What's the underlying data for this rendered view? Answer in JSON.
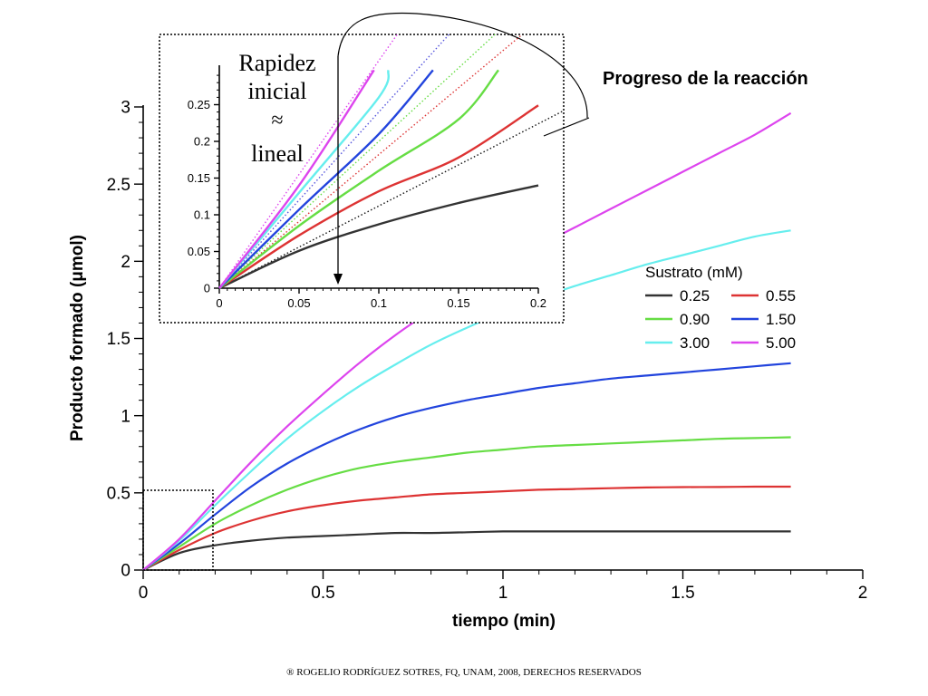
{
  "chart_data": [
    {
      "type": "line",
      "title": "Progreso de la reacción",
      "xlabel": "tiempo (min)",
      "ylabel": "Producto formado (μmol)",
      "xlim": [
        0,
        2
      ],
      "ylim": [
        0,
        3
      ],
      "x_ticks": [
        "0",
        "0.5",
        "1",
        "1.5",
        "2"
      ],
      "y_ticks": [
        "0",
        "0.5",
        "1",
        "1.5",
        "2",
        "2.5",
        "3"
      ],
      "grid": false,
      "legend": {
        "title": "Sustrato (mM)",
        "placement": "right"
      },
      "x": [
        0,
        0.1,
        0.2,
        0.3,
        0.4,
        0.5,
        0.6,
        0.7,
        0.8,
        0.9,
        1.0,
        1.1,
        1.2,
        1.3,
        1.4,
        1.5,
        1.6,
        1.7,
        1.8
      ],
      "series": [
        {
          "name": "0.25",
          "color": "#333333",
          "values": [
            0,
            0.11,
            0.16,
            0.19,
            0.21,
            0.22,
            0.23,
            0.24,
            0.24,
            0.245,
            0.25,
            0.25,
            0.25,
            0.25,
            0.25,
            0.25,
            0.25,
            0.25,
            0.25
          ]
        },
        {
          "name": "0.55",
          "color": "#dd3333",
          "values": [
            0,
            0.13,
            0.24,
            0.32,
            0.38,
            0.42,
            0.45,
            0.47,
            0.49,
            0.5,
            0.51,
            0.52,
            0.525,
            0.53,
            0.535,
            0.537,
            0.538,
            0.54,
            0.54
          ]
        },
        {
          "name": "0.90",
          "color": "#66dd44",
          "values": [
            0,
            0.15,
            0.3,
            0.42,
            0.52,
            0.6,
            0.66,
            0.7,
            0.73,
            0.76,
            0.78,
            0.8,
            0.81,
            0.82,
            0.83,
            0.84,
            0.85,
            0.855,
            0.86
          ]
        },
        {
          "name": "1.50",
          "color": "#2244dd",
          "values": [
            0,
            0.17,
            0.36,
            0.54,
            0.69,
            0.81,
            0.91,
            0.99,
            1.05,
            1.1,
            1.14,
            1.18,
            1.21,
            1.24,
            1.26,
            1.28,
            1.3,
            1.32,
            1.34
          ]
        },
        {
          "name": "3.00",
          "color": "#66eeee",
          "values": [
            0,
            0.19,
            0.42,
            0.64,
            0.85,
            1.03,
            1.19,
            1.33,
            1.46,
            1.57,
            1.67,
            1.76,
            1.84,
            1.91,
            1.98,
            2.04,
            2.1,
            2.16,
            2.2
          ]
        },
        {
          "name": "5.00",
          "color": "#dd44ee",
          "values": [
            0,
            0.2,
            0.45,
            0.7,
            0.93,
            1.14,
            1.34,
            1.52,
            1.68,
            1.83,
            1.97,
            2.1,
            2.22,
            2.34,
            2.46,
            2.58,
            2.7,
            2.82,
            2.96
          ]
        }
      ]
    },
    {
      "type": "line",
      "title": "",
      "xlim": [
        0,
        0.2
      ],
      "ylim": [
        0,
        0.3
      ],
      "x_ticks": [
        "0",
        "0.05",
        "0.1",
        "0.15",
        "0.2"
      ],
      "y_ticks": [
        "0",
        "0.05",
        "0.1",
        "0.15",
        "0.2",
        "0.25"
      ],
      "annotation": {
        "line1": "Rapidez",
        "line2": "inicial",
        "symbol": "≈",
        "line3": "lineal"
      },
      "series": [
        {
          "name": "0.25",
          "color": "#333333",
          "x": [
            0,
            0.05,
            0.1,
            0.15,
            0.2
          ],
          "values": [
            0,
            0.051,
            0.087,
            0.116,
            0.14
          ]
        },
        {
          "name": "0.55",
          "color": "#dd3333",
          "x": [
            0,
            0.05,
            0.1,
            0.15,
            0.2
          ],
          "values": [
            0,
            0.072,
            0.132,
            0.178,
            0.249
          ]
        },
        {
          "name": "0.90",
          "color": "#66dd44",
          "x": [
            0,
            0.05,
            0.1,
            0.15,
            0.175
          ],
          "values": [
            0,
            0.085,
            0.16,
            0.23,
            0.297
          ]
        },
        {
          "name": "1.50",
          "color": "#2244dd",
          "x": [
            0,
            0.05,
            0.1,
            0.134
          ],
          "values": [
            0,
            0.107,
            0.21,
            0.297
          ]
        },
        {
          "name": "3.00",
          "color": "#66eeee",
          "x": [
            0,
            0.05,
            0.1,
            0.106
          ],
          "values": [
            0,
            0.13,
            0.26,
            0.297
          ]
        },
        {
          "name": "5.00",
          "color": "#dd44ee",
          "x": [
            0,
            0.05,
            0.097
          ],
          "values": [
            0,
            0.14,
            0.297
          ]
        }
      ],
      "initial_rate_slopes": [
        {
          "name": "0.25",
          "color": "#111111",
          "slope": 1.12
        },
        {
          "name": "0.55",
          "color": "#dd3333",
          "slope": 1.82
        },
        {
          "name": "0.90",
          "color": "#66dd44",
          "slope": 2.0
        },
        {
          "name": "1.50",
          "color": "#5555dd",
          "slope": 2.4
        },
        {
          "name": "5.00",
          "color": "#dd44ee",
          "slope": 3.1
        }
      ]
    }
  ],
  "footer": "® ROGELIO RODRÍGUEZ SOTRES, FQ, UNAM, 2008, DERECHOS RESERVADOS"
}
